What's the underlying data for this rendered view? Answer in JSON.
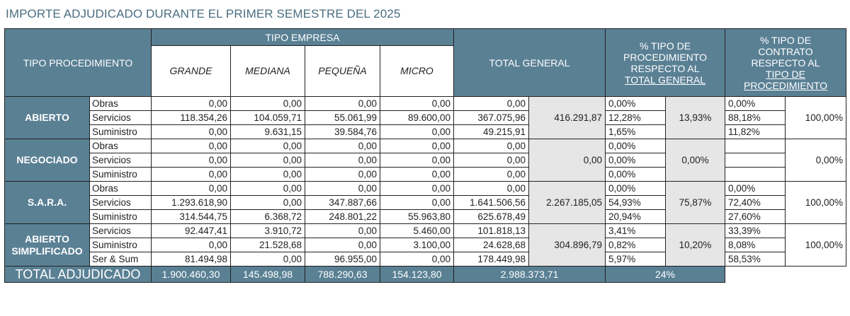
{
  "title": "IMPORTE ADJUDICADO DURANTE EL PRIMER SEMESTRE DEL 2025",
  "headers": {
    "tipo_procedimiento": "TIPO PROCEDIMIENTO",
    "tipo_empresa": "TIPO EMPRESA",
    "grande": "GRANDE",
    "mediana": "MEDIANA",
    "pequena": "PEQUEÑA",
    "micro": "MICRO",
    "total_general": "TOTAL GENERAL",
    "pct_proc_1": "% TIPO DE",
    "pct_proc_2": "PROCEDIMIENTO",
    "pct_proc_3": "RESPECTO AL",
    "pct_proc_4": "TOTAL GENERAL",
    "pct_contr_1": "% TIPO DE",
    "pct_contr_2": "CONTRATO",
    "pct_contr_3": "RESPECTO AL",
    "pct_contr_4": "TIPO DE",
    "pct_contr_5": "PROCEDIMIENTO"
  },
  "groups": [
    {
      "name": "ABIERTO",
      "group_total": "416.291,87",
      "group_pct": "13,93%",
      "contract_total_pct": "100,00%",
      "rows": [
        {
          "tipo": "Obras",
          "grande": "0,00",
          "mediana": "0,00",
          "pequena": "0,00",
          "micro": "0,00",
          "total": "0,00",
          "pct_proc": "0,00%",
          "pct_contr": "0,00%"
        },
        {
          "tipo": "Servicios",
          "grande": "118.354,26",
          "mediana": "104.059,71",
          "pequena": "55.061,99",
          "micro": "89.600,00",
          "total": "367.075,96",
          "pct_proc": "12,28%",
          "pct_contr": "88,18%"
        },
        {
          "tipo": "Suministro",
          "grande": "0,00",
          "mediana": "9.631,15",
          "pequena": "39.584,76",
          "micro": "0,00",
          "total": "49.215,91",
          "pct_proc": "1,65%",
          "pct_contr": "11,82%"
        }
      ]
    },
    {
      "name": "NEGOCIADO",
      "group_total": "0,00",
      "group_pct": "0,00%",
      "contract_total_pct": "0,00%",
      "rows": [
        {
          "tipo": "Obras",
          "grande": "0,00",
          "mediana": "0,00",
          "pequena": "0,00",
          "micro": "0,00",
          "total": "0,00",
          "pct_proc": "0,00%",
          "pct_contr": ""
        },
        {
          "tipo": "Servicios",
          "grande": "0,00",
          "mediana": "0,00",
          "pequena": "0,00",
          "micro": "0,00",
          "total": "0,00",
          "pct_proc": "0,00%",
          "pct_contr": ""
        },
        {
          "tipo": "Suministro",
          "grande": "0,00",
          "mediana": "0,00",
          "pequena": "0,00",
          "micro": "0,00",
          "total": "0,00",
          "pct_proc": "0,00%",
          "pct_contr": ""
        }
      ]
    },
    {
      "name": "S.A.R.A.",
      "group_total": "2.267.185,05",
      "group_pct": "75,87%",
      "contract_total_pct": "100,00%",
      "rows": [
        {
          "tipo": "Obras",
          "grande": "0,00",
          "mediana": "0,00",
          "pequena": "0,00",
          "micro": "0,00",
          "total": "0,00",
          "pct_proc": "0,00%",
          "pct_contr": "0,00%"
        },
        {
          "tipo": "Servicios",
          "grande": "1.293.618,90",
          "mediana": "0,00",
          "pequena": "347.887,66",
          "micro": "0,00",
          "total": "1.641.506,56",
          "pct_proc": "54,93%",
          "pct_contr": "72,40%"
        },
        {
          "tipo": "Suministro",
          "grande": "314.544,75",
          "mediana": "6.368,72",
          "pequena": "248.801,22",
          "micro": "55.963,80",
          "total": "625.678,49",
          "pct_proc": "20,94%",
          "pct_contr": "27,60%"
        }
      ]
    },
    {
      "name": "ABIERTO SIMPLIFICADO",
      "group_total": "304.896,79",
      "group_pct": "10,20%",
      "contract_total_pct": "100,00%",
      "rows": [
        {
          "tipo": "Servicios",
          "grande": "92.447,41",
          "mediana": "3.910,72",
          "pequena": "0,00",
          "micro": "5.460,00",
          "total": "101.818,13",
          "pct_proc": "3,41%",
          "pct_contr": "33,39%"
        },
        {
          "tipo": "Suministro",
          "grande": "0,00",
          "mediana": "21.528,68",
          "pequena": "0,00",
          "micro": "3.100,00",
          "total": "24.628,68",
          "pct_proc": "0,82%",
          "pct_contr": "8,08%"
        },
        {
          "tipo": "Ser & Sum",
          "grande": "81.494,98",
          "mediana": "0,00",
          "pequena": "96.955,00",
          "micro": "0,00",
          "total": "178.449,98",
          "pct_proc": "5,97%",
          "pct_contr": "58,53%"
        }
      ]
    }
  ],
  "totals": {
    "label": "TOTAL ADJUDICADO",
    "grande": "1.900.460,30",
    "mediana": "145.498,98",
    "pequena": "788.290,63",
    "micro": "154.123,80",
    "total": "2.988.373,71",
    "pct": "24%"
  }
}
